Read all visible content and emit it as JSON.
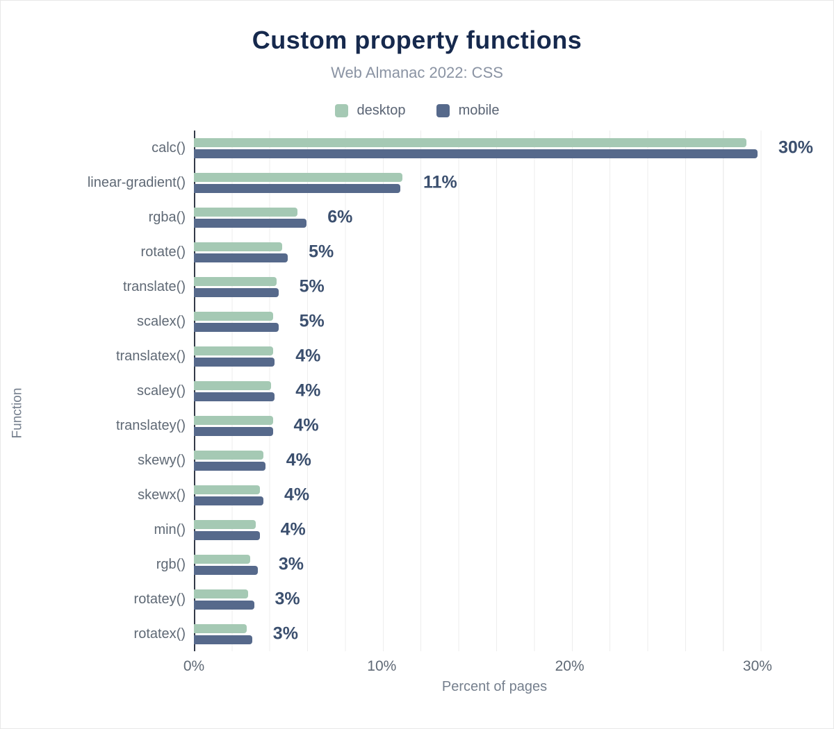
{
  "chart_data": {
    "type": "bar",
    "orientation": "horizontal",
    "title": "Custom property functions",
    "subtitle": "Web Almanac 2022: CSS",
    "xlabel": "Percent of pages",
    "ylabel": "Function",
    "xlim": [
      0,
      32
    ],
    "grid_step_percent": 2,
    "x_tick_values": [
      0,
      10,
      20,
      30
    ],
    "x_tick_labels": [
      "0%",
      "10%",
      "20%",
      "30%"
    ],
    "legend_position": "top",
    "categories": [
      "calc()",
      "linear-gradient()",
      "rgba()",
      "rotate()",
      "translate()",
      "scalex()",
      "translatex()",
      "scaley()",
      "translatey()",
      "skewy()",
      "skewx()",
      "min()",
      "rgb()",
      "rotatey()",
      "rotatex()"
    ],
    "series": [
      {
        "name": "desktop",
        "color": "#a5c9b4",
        "values": [
          29.4,
          11.1,
          5.5,
          4.7,
          4.4,
          4.2,
          4.2,
          4.1,
          4.2,
          3.7,
          3.5,
          3.3,
          3.0,
          2.9,
          2.8
        ]
      },
      {
        "name": "mobile",
        "color": "#56698b",
        "values": [
          30.0,
          11.0,
          6.0,
          5.0,
          4.5,
          4.5,
          4.3,
          4.3,
          4.2,
          3.8,
          3.7,
          3.5,
          3.4,
          3.2,
          3.1
        ]
      }
    ],
    "value_labels": [
      "30%",
      "11%",
      "6%",
      "5%",
      "5%",
      "5%",
      "4%",
      "4%",
      "4%",
      "4%",
      "4%",
      "4%",
      "3%",
      "3%",
      "3%"
    ]
  },
  "colors": {
    "title": "#16294d",
    "subtitle": "#8a93a3",
    "axis_text": "#5f6975",
    "value_label": "#3b4f6e",
    "axis_line": "#333a48",
    "desktop_bar": "#a5c9b4",
    "mobile_bar": "#56698b"
  }
}
